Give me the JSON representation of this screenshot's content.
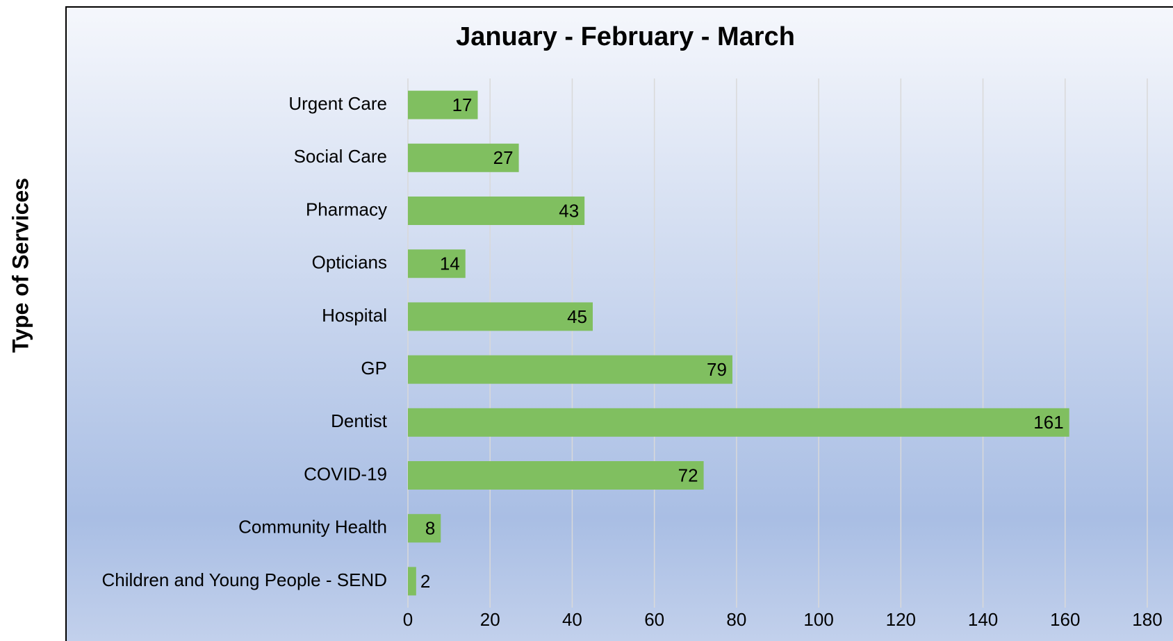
{
  "chart_data": {
    "type": "bar",
    "orientation": "horizontal",
    "title": "January - February - March",
    "y_label": "Type of Services",
    "categories": [
      "Urgent Care",
      "Social Care",
      "Pharmacy",
      "Opticians",
      "Hospital",
      "GP",
      "Dentist",
      "COVID-19",
      "Community Health",
      "Children and Young People - SEND"
    ],
    "values": [
      17,
      27,
      43,
      14,
      45,
      79,
      161,
      72,
      8,
      2
    ],
    "color": "#80bf60",
    "xlim": [
      0,
      180
    ],
    "xticks": [
      0,
      20,
      40,
      60,
      80,
      100,
      120,
      140,
      160,
      180
    ],
    "grid": true
  }
}
